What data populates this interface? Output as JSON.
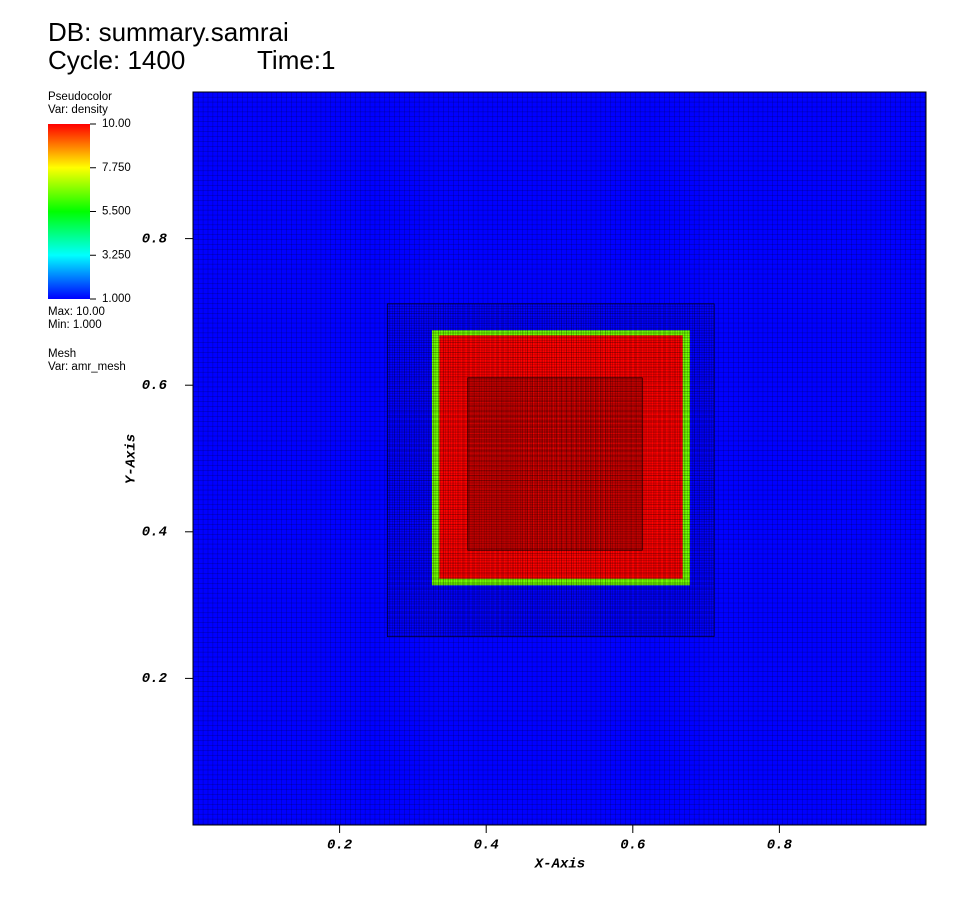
{
  "chart_data": {
    "type": "pseudocolor",
    "title": "DB: summary.samrai",
    "cycle": "Cycle: 1400",
    "time": "Time:1",
    "legend": {
      "plot": "Pseudocolor",
      "var": "Var: density",
      "max": "Max:  10.00",
      "min": "Min:  1.000",
      "mesh": "Mesh",
      "mesh_var": "Var: amr_mesh",
      "clim": [
        1,
        10
      ],
      "ticks": [
        {
          "value": 10,
          "label": "10.00"
        },
        {
          "value": 7.75,
          "label": "7.750"
        },
        {
          "value": 5.5,
          "label": "5.500"
        },
        {
          "value": 3.25,
          "label": "3.250"
        },
        {
          "value": 1,
          "label": "1.000"
        }
      ]
    },
    "colormap": [
      "#0000ff",
      "#00ffff",
      "#00ff00",
      "#ffff00",
      "#ff0000"
    ],
    "xlabel": "X-Axis",
    "ylabel": "Y-Axis",
    "xlim": [
      0,
      1
    ],
    "ylim": [
      0,
      1
    ],
    "xticks": [
      0.2,
      0.4,
      0.6,
      0.8
    ],
    "yticks": [
      0.2,
      0.4,
      0.6,
      0.8
    ],
    "regions": [
      {
        "x": [
          0,
          1
        ],
        "y": [
          0,
          1
        ],
        "value": 1
      },
      {
        "x": [
          0.326,
          0.678
        ],
        "y": [
          0.327,
          0.675
        ],
        "value": 6.5
      },
      {
        "x": [
          0.336,
          0.668
        ],
        "y": [
          0.336,
          0.668
        ],
        "value": 10
      }
    ],
    "mesh_patches": [
      {
        "x": [
          0,
          1
        ],
        "y": [
          0,
          1
        ],
        "spacing": 0.0067
      },
      {
        "x": [
          0.265,
          0.711
        ],
        "y": [
          0.257,
          0.711
        ],
        "spacing": 0.0033
      },
      {
        "x": [
          0.375,
          0.613
        ],
        "y": [
          0.375,
          0.61
        ],
        "spacing": 0.0017
      }
    ]
  }
}
